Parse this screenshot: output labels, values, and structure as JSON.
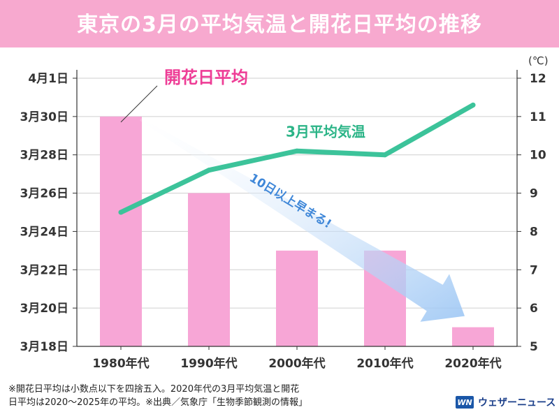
{
  "title": "東京の3月の平均気温と開花日平均の推移",
  "chart_data": {
    "type": "bar+line",
    "categories": [
      "1980年代",
      "1990年代",
      "2000年代",
      "2010年代",
      "2020年代"
    ],
    "bar_series": {
      "name": "開花日平均",
      "values": [
        30,
        26,
        23,
        23,
        19
      ],
      "color": "#f7a6d6"
    },
    "line_series": {
      "name": "3月平均気温",
      "values": [
        8.5,
        9.6,
        10.1,
        10.0,
        11.3
      ],
      "color": "#3cc39a"
    },
    "left_axis": {
      "ticks": [
        {
          "value": 18,
          "label": "3月18日"
        },
        {
          "value": 20,
          "label": "3月20日"
        },
        {
          "value": 22,
          "label": "3月22日"
        },
        {
          "value": 24,
          "label": "3月24日"
        },
        {
          "value": 26,
          "label": "3月26日"
        },
        {
          "value": 28,
          "label": "3月28日"
        },
        {
          "value": 30,
          "label": "3月30日"
        },
        {
          "value": 32,
          "label": "4月1日"
        }
      ],
      "range": [
        18,
        32
      ]
    },
    "right_axis": {
      "unit": "(℃)",
      "ticks": [
        5,
        6,
        7,
        8,
        9,
        10,
        11,
        12
      ],
      "range": [
        5,
        12
      ]
    },
    "annotations": {
      "bar_label": "開花日平均",
      "line_label": "3月平均気温",
      "arrow_text": "10日以上早まる!"
    },
    "colors": {
      "grid": "#cfcfcf",
      "arrow": "#9cc6f4",
      "arrow_text": "#3f87d8",
      "bar_label": "#ee3d96",
      "line_label": "#2bb487"
    }
  },
  "footnote": {
    "line1": "※開花日平均は小数点以下を四捨五入。2020年代の3月平均気温と開花",
    "line2": "日平均は2020〜2025年の平均。※出典／気象庁「生物季節観測の情報」"
  },
  "logo": {
    "mark": "WN",
    "text": "ウェザーニュース"
  }
}
